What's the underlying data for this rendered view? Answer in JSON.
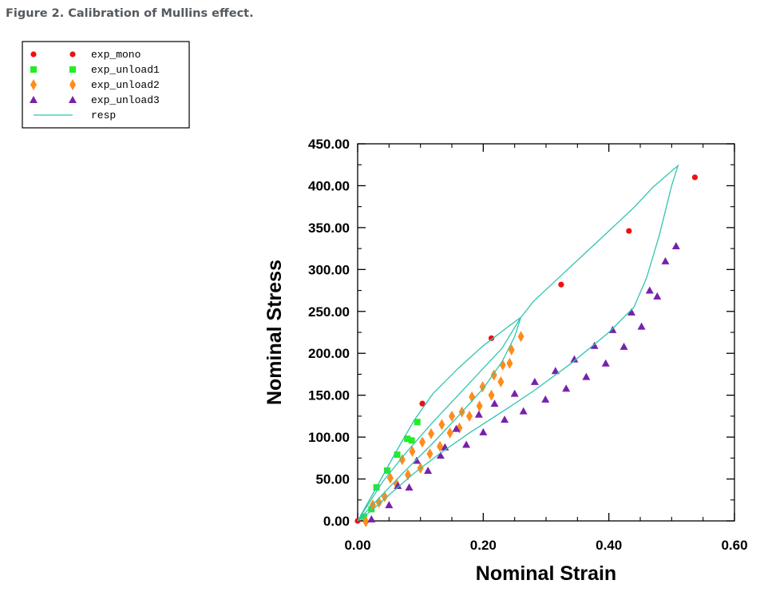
{
  "figure": {
    "caption": "Figure 2. Calibration of Mullins effect."
  },
  "chart_data": {
    "type": "scatter",
    "xlabel": "Nominal Strain",
    "ylabel": "Nominal Stress",
    "xlim": [
      0.0,
      0.6
    ],
    "ylim": [
      0.0,
      450.0
    ],
    "x_ticks": [
      "0.00",
      "0.20",
      "0.40",
      "0.60"
    ],
    "y_ticks": [
      "0.00",
      "50.00",
      "100.00",
      "150.00",
      "200.00",
      "250.00",
      "300.00",
      "350.00",
      "400.00",
      "450.00"
    ],
    "legend_position": "top-left",
    "grid": false,
    "series": [
      {
        "name": "exp_mono",
        "marker": "circle",
        "color": "#ee1111",
        "points": [
          [
            0.0,
            0.0
          ],
          [
            0.103,
            140
          ],
          [
            0.213,
            218
          ],
          [
            0.324,
            282
          ],
          [
            0.432,
            346
          ],
          [
            0.537,
            410
          ]
        ]
      },
      {
        "name": "exp_unload1",
        "marker": "square",
        "color": "#22ee22",
        "points": [
          [
            0.01,
            5
          ],
          [
            0.022,
            14
          ],
          [
            0.03,
            40
          ],
          [
            0.047,
            60
          ],
          [
            0.063,
            79
          ],
          [
            0.079,
            98
          ],
          [
            0.086,
            96
          ],
          [
            0.095,
            118
          ]
        ]
      },
      {
        "name": "exp_unload2",
        "marker": "diamond",
        "color": "#ff8c1a",
        "points": [
          [
            0.013,
            -1
          ],
          [
            0.024,
            19
          ],
          [
            0.034,
            22
          ],
          [
            0.043,
            29
          ],
          [
            0.052,
            51
          ],
          [
            0.062,
            44
          ],
          [
            0.071,
            73
          ],
          [
            0.08,
            55
          ],
          [
            0.087,
            83
          ],
          [
            0.1,
            63
          ],
          [
            0.103,
            94
          ],
          [
            0.115,
            80
          ],
          [
            0.117,
            104
          ],
          [
            0.131,
            89
          ],
          [
            0.134,
            115
          ],
          [
            0.147,
            105
          ],
          [
            0.15,
            125
          ],
          [
            0.162,
            111
          ],
          [
            0.166,
            130
          ],
          [
            0.178,
            125
          ],
          [
            0.182,
            148
          ],
          [
            0.194,
            137
          ],
          [
            0.199,
            160
          ],
          [
            0.213,
            150
          ],
          [
            0.217,
            174
          ],
          [
            0.228,
            166
          ],
          [
            0.231,
            186
          ],
          [
            0.242,
            188
          ],
          [
            0.245,
            204
          ],
          [
            0.26,
            220
          ]
        ]
      },
      {
        "name": "exp_unload3",
        "marker": "triangle",
        "color": "#7722aa",
        "points": [
          [
            0.022,
            2
          ],
          [
            0.05,
            19
          ],
          [
            0.064,
            42
          ],
          [
            0.082,
            40
          ],
          [
            0.094,
            72
          ],
          [
            0.112,
            60
          ],
          [
            0.132,
            78
          ],
          [
            0.139,
            88
          ],
          [
            0.157,
            110
          ],
          [
            0.173,
            91
          ],
          [
            0.193,
            127
          ],
          [
            0.2,
            106
          ],
          [
            0.218,
            140
          ],
          [
            0.234,
            121
          ],
          [
            0.25,
            152
          ],
          [
            0.264,
            131
          ],
          [
            0.282,
            166
          ],
          [
            0.299,
            145
          ],
          [
            0.315,
            179
          ],
          [
            0.332,
            158
          ],
          [
            0.345,
            193
          ],
          [
            0.364,
            172
          ],
          [
            0.377,
            209
          ],
          [
            0.395,
            188
          ],
          [
            0.406,
            228
          ],
          [
            0.424,
            208
          ],
          [
            0.436,
            249
          ],
          [
            0.452,
            232
          ],
          [
            0.465,
            275
          ],
          [
            0.477,
            268
          ],
          [
            0.49,
            310
          ],
          [
            0.507,
            328
          ]
        ]
      },
      {
        "name": "resp",
        "marker": "line",
        "color": "#33c4b0",
        "points": [
          [
            0.0,
            0
          ],
          [
            0.03,
            40
          ],
          [
            0.06,
            81
          ],
          [
            0.09,
            120
          ],
          [
            0.12,
            152
          ],
          [
            0.16,
            182
          ],
          [
            0.2,
            209
          ],
          [
            0.24,
            232
          ],
          [
            0.26,
            243
          ],
          [
            0.28,
            262
          ],
          [
            0.32,
            290
          ],
          [
            0.36,
            318
          ],
          [
            0.4,
            346
          ],
          [
            0.44,
            374
          ],
          [
            0.47,
            398
          ],
          [
            0.51,
            424
          ],
          [
            0.5,
            400
          ],
          [
            0.48,
            340
          ],
          [
            0.46,
            290
          ],
          [
            0.44,
            255
          ],
          [
            0.4,
            225
          ],
          [
            0.34,
            188
          ],
          [
            0.28,
            155
          ],
          [
            0.24,
            135
          ],
          [
            0.18,
            106
          ],
          [
            0.13,
            80
          ],
          [
            0.09,
            57
          ],
          [
            0.05,
            31
          ],
          [
            0.02,
            11
          ],
          [
            0.0,
            0
          ],
          [
            0.04,
            47
          ],
          [
            0.08,
            84
          ],
          [
            0.12,
            118
          ],
          [
            0.16,
            150
          ],
          [
            0.2,
            182
          ],
          [
            0.23,
            206
          ],
          [
            0.26,
            243
          ],
          [
            0.25,
            220
          ],
          [
            0.23,
            190
          ],
          [
            0.2,
            158
          ],
          [
            0.16,
            125
          ],
          [
            0.12,
            93
          ],
          [
            0.08,
            63
          ],
          [
            0.04,
            32
          ],
          [
            0.0,
            0
          ]
        ]
      }
    ]
  }
}
